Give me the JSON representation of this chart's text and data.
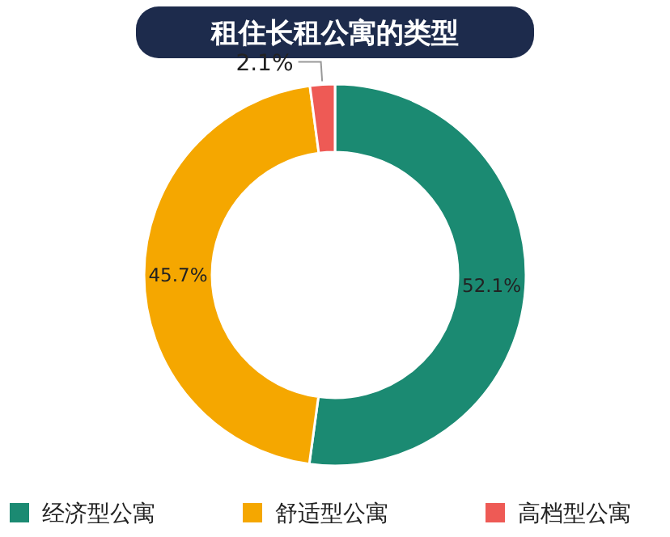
{
  "chart_data": {
    "type": "donut",
    "title": "租住长租公寓的类型",
    "categories": [
      "经济型公寓",
      "舒适型公寓",
      "高档型公寓"
    ],
    "values": [
      52.1,
      45.7,
      2.1
    ],
    "colors": [
      "#1b8a72",
      "#f5a700",
      "#ee5a55"
    ],
    "value_labels": [
      "52.1%",
      "45.7%",
      "2.1%"
    ],
    "legend": "bottom"
  }
}
